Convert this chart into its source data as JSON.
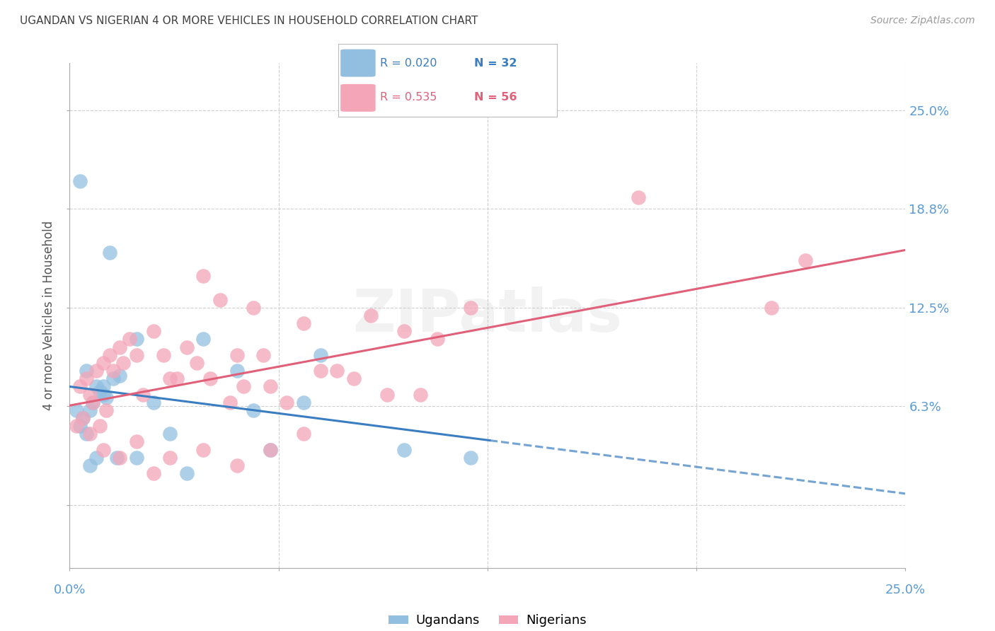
{
  "title": "UGANDAN VS NIGERIAN 4 OR MORE VEHICLES IN HOUSEHOLD CORRELATION CHART",
  "source": "Source: ZipAtlas.com",
  "ylabel": "4 or more Vehicles in Household",
  "xlim": [
    0.0,
    25.0
  ],
  "ylim": [
    -4.0,
    28.0
  ],
  "ytick_vals": [
    0.0,
    6.25,
    12.5,
    18.75,
    25.0
  ],
  "ytick_labels": [
    "",
    "6.3%",
    "12.5%",
    "18.8%",
    "25.0%"
  ],
  "xtick_vals": [
    0.0,
    6.25,
    12.5,
    18.75,
    25.0
  ],
  "blue_scatter_color": "#92bfe0",
  "pink_scatter_color": "#f4a5b8",
  "blue_line_color": "#3a7dc0",
  "pink_line_color": "#e0607a",
  "axis_color": "#5b9bd5",
  "title_color": "#404040",
  "grid_color": "#d0d0d0",
  "source_color": "#999999",
  "legend_blue_r": "R = 0.020",
  "legend_blue_n": "N = 32",
  "legend_pink_r": "R = 0.535",
  "legend_pink_n": "N = 56",
  "ugandan_x": [
    0.5,
    0.8,
    1.0,
    0.3,
    0.4,
    0.6,
    0.7,
    0.9,
    1.1,
    1.3,
    1.5,
    2.0,
    2.5,
    3.0,
    4.0,
    5.0,
    6.0,
    7.5,
    10.0,
    12.0,
    0.2,
    0.5,
    0.6,
    0.8,
    1.0,
    1.4,
    2.0,
    3.5,
    5.5,
    7.0,
    0.3,
    1.2
  ],
  "ugandan_y": [
    8.5,
    7.5,
    7.0,
    5.0,
    5.5,
    6.0,
    6.5,
    7.2,
    6.8,
    8.0,
    8.2,
    10.5,
    6.5,
    4.5,
    10.5,
    8.5,
    3.5,
    9.5,
    3.5,
    3.0,
    6.0,
    4.5,
    2.5,
    3.0,
    7.5,
    3.0,
    3.0,
    2.0,
    6.0,
    6.5,
    20.5,
    16.0
  ],
  "nigerian_x": [
    0.3,
    0.5,
    0.6,
    0.8,
    1.0,
    1.2,
    1.5,
    1.8,
    2.0,
    2.5,
    3.0,
    3.5,
    4.0,
    4.5,
    5.0,
    5.5,
    6.0,
    7.0,
    8.0,
    9.0,
    10.0,
    11.0,
    12.0,
    0.4,
    0.7,
    0.9,
    1.1,
    1.3,
    1.6,
    2.2,
    2.8,
    3.2,
    3.8,
    4.2,
    4.8,
    5.2,
    5.8,
    6.5,
    7.5,
    8.5,
    9.5,
    10.5,
    0.2,
    0.6,
    1.0,
    1.5,
    2.0,
    2.5,
    3.0,
    4.0,
    5.0,
    6.0,
    7.0,
    21.0,
    22.0,
    17.0
  ],
  "nigerian_y": [
    7.5,
    8.0,
    7.0,
    8.5,
    9.0,
    9.5,
    10.0,
    10.5,
    9.5,
    11.0,
    8.0,
    10.0,
    14.5,
    13.0,
    9.5,
    12.5,
    7.5,
    11.5,
    8.5,
    12.0,
    11.0,
    10.5,
    12.5,
    5.5,
    6.5,
    5.0,
    6.0,
    8.5,
    9.0,
    7.0,
    9.5,
    8.0,
    9.0,
    8.0,
    6.5,
    7.5,
    9.5,
    6.5,
    8.5,
    8.0,
    7.0,
    7.0,
    5.0,
    4.5,
    3.5,
    3.0,
    4.0,
    2.0,
    3.0,
    3.5,
    2.5,
    3.5,
    4.5,
    12.5,
    15.5,
    19.5
  ]
}
